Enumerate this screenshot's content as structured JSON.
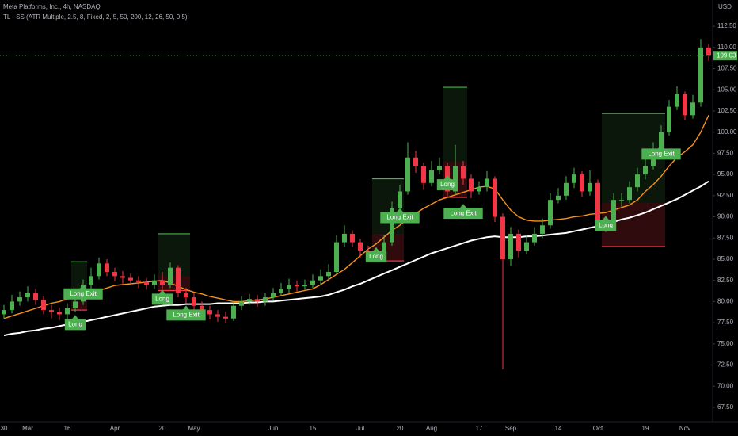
{
  "chart_data": {
    "type": "candlestick",
    "title": "Meta Platforms, Inc., 4h, NASDAQ",
    "subtitle": "TL - SS (ATR Multiple, 2.5, 8, Fixed, 2, 5, 50, 200, 12, 26, 50, 0.5)",
    "currency": "USD",
    "last_price": 109.03,
    "up_color": "#4caf50",
    "down_color": "#f23645",
    "categories": [
      "30",
      null,
      null,
      "Mar",
      null,
      null,
      null,
      null,
      "16",
      null,
      null,
      null,
      null,
      null,
      "Apr",
      null,
      null,
      null,
      null,
      null,
      "20",
      null,
      null,
      null,
      "May",
      null,
      null,
      null,
      null,
      null,
      null,
      null,
      null,
      null,
      "Jun",
      null,
      null,
      null,
      null,
      "15",
      null,
      null,
      null,
      null,
      null,
      "Jul",
      null,
      null,
      null,
      null,
      "20",
      null,
      null,
      null,
      "Aug",
      null,
      null,
      null,
      null,
      null,
      "17",
      null,
      null,
      null,
      "Sep",
      null,
      null,
      null,
      null,
      null,
      "14",
      null,
      null,
      null,
      null,
      "Oct",
      null,
      null,
      null,
      null,
      null,
      "19",
      null,
      null,
      null,
      null,
      "Nov",
      null,
      null,
      null
    ],
    "ohlc": {
      "open": [
        78.5,
        79.0,
        80.0,
        80.5,
        81.0,
        80.2,
        79.0,
        78.8,
        78.5,
        79.2,
        80.0,
        82.0,
        83.0,
        84.5,
        83.5,
        83.0,
        82.8,
        82.5,
        82.3,
        82.0,
        82.5,
        82.0,
        84.0,
        81.0,
        80.5,
        79.5,
        79.0,
        78.5,
        78.2,
        78.0,
        79.5,
        80.0,
        80.3,
        80.0,
        80.5,
        81.0,
        81.5,
        82.0,
        81.8,
        82.0,
        82.5,
        83.0,
        83.5,
        87.0,
        88.0,
        87.0,
        86.0,
        85.5,
        85.5,
        87.0,
        91.0,
        93.0,
        97.0,
        96.0,
        94.0,
        95.5,
        96.0,
        93.0,
        96.0,
        94.5,
        93.0,
        93.5,
        94.5,
        90.0,
        85.0,
        88.0,
        86.0,
        87.0,
        88.0,
        89.0,
        92.0,
        92.5,
        94.0,
        95.0,
        93.0,
        94.0,
        89.0,
        89.0,
        92.0,
        92.0,
        93.5,
        95.0,
        96.0,
        98.0,
        100.0,
        103.0,
        104.5,
        102.0,
        103.5,
        110.0
      ],
      "high": [
        79.6,
        80.8,
        81.2,
        81.8,
        81.5,
        80.6,
        79.6,
        79.3,
        79.8,
        80.6,
        82.6,
        84.0,
        85.2,
        85.0,
        84.0,
        83.6,
        83.3,
        83.0,
        82.8,
        83.2,
        83.5,
        84.6,
        84.3,
        81.6,
        81.0,
        80.0,
        79.5,
        79.0,
        78.8,
        80.0,
        80.6,
        80.9,
        80.8,
        81.0,
        81.6,
        82.2,
        82.7,
        82.5,
        82.6,
        83.2,
        83.8,
        84.4,
        87.8,
        89.0,
        88.4,
        87.4,
        86.6,
        86.4,
        87.8,
        91.8,
        93.8,
        98.8,
        97.8,
        96.4,
        96.6,
        97.0,
        96.4,
        98.5,
        96.6,
        95.0,
        94.2,
        95.4,
        94.8,
        90.4,
        88.8,
        88.5,
        87.8,
        88.8,
        89.8,
        92.8,
        93.4,
        94.8,
        95.8,
        95.4,
        95.5,
        94.4,
        89.8,
        92.8,
        92.8,
        94.2,
        95.8,
        96.8,
        98.8,
        100.8,
        103.8,
        105.4,
        104.8,
        104.4,
        111.0,
        110.4
      ],
      "low": [
        78.0,
        78.6,
        79.5,
        80.0,
        79.6,
        78.5,
        78.0,
        77.8,
        77.9,
        78.8,
        79.6,
        81.5,
        82.6,
        83.0,
        82.4,
        82.0,
        81.9,
        81.6,
        81.4,
        81.5,
        81.4,
        81.6,
        80.5,
        79.8,
        78.9,
        78.4,
        77.9,
        77.6,
        77.4,
        77.7,
        79.0,
        79.6,
        79.4,
        79.5,
        80.1,
        80.6,
        81.0,
        81.2,
        81.3,
        81.6,
        82.0,
        82.6,
        83.2,
        86.5,
        86.4,
        85.2,
        84.8,
        84.8,
        85.0,
        86.6,
        90.4,
        92.6,
        95.2,
        93.2,
        93.6,
        95.0,
        92.4,
        92.6,
        93.8,
        92.2,
        92.6,
        93.0,
        89.4,
        72.0,
        84.2,
        85.2,
        85.6,
        86.6,
        87.5,
        88.6,
        91.6,
        92.0,
        93.4,
        92.4,
        92.5,
        88.4,
        88.2,
        88.6,
        91.2,
        91.6,
        93.0,
        94.4,
        95.6,
        97.6,
        99.6,
        102.6,
        101.4,
        101.6,
        103.0,
        108.4
      ],
      "close": [
        79.0,
        80.0,
        80.5,
        81.0,
        80.2,
        79.0,
        78.8,
        78.5,
        79.2,
        80.0,
        82.0,
        83.0,
        84.5,
        83.5,
        83.0,
        82.8,
        82.5,
        82.3,
        82.0,
        82.5,
        82.0,
        84.0,
        81.0,
        80.5,
        79.5,
        79.0,
        78.5,
        78.2,
        78.0,
        79.5,
        80.0,
        80.3,
        80.0,
        80.5,
        81.0,
        81.5,
        82.0,
        81.8,
        82.0,
        82.5,
        83.0,
        83.5,
        87.0,
        88.0,
        87.0,
        86.0,
        85.5,
        85.5,
        87.0,
        91.0,
        93.0,
        97.0,
        96.0,
        94.0,
        95.5,
        96.0,
        93.0,
        96.0,
        94.5,
        93.0,
        93.5,
        94.5,
        90.0,
        85.0,
        88.0,
        86.0,
        87.0,
        88.0,
        89.0,
        92.0,
        92.5,
        94.0,
        95.0,
        93.0,
        94.0,
        89.0,
        89.0,
        92.0,
        92.0,
        93.5,
        95.0,
        96.0,
        98.0,
        100.0,
        103.0,
        104.5,
        102.0,
        103.5,
        110.0,
        109.03
      ]
    },
    "moving_averages": [
      {
        "color": "#f7931a",
        "values": [
          78.0,
          78.3,
          78.6,
          78.9,
          79.2,
          79.5,
          79.8,
          80.0,
          80.3,
          80.5,
          80.8,
          81.0,
          81.3,
          81.6,
          81.9,
          82.0,
          82.1,
          82.2,
          82.3,
          82.4,
          82.5,
          82.2,
          81.8,
          81.4,
          81.1,
          80.9,
          80.6,
          80.4,
          80.2,
          80.0,
          80.0,
          80.1,
          80.2,
          80.3,
          80.5,
          80.7,
          80.9,
          81.1,
          81.3,
          81.5,
          82.0,
          82.6,
          83.2,
          83.8,
          84.6,
          85.4,
          86.2,
          86.8,
          87.6,
          88.4,
          89.0,
          89.8,
          90.4,
          91.0,
          91.5,
          92.0,
          92.3,
          92.6,
          92.9,
          93.2,
          93.5,
          93.6,
          93.3,
          92.0,
          90.8,
          90.0,
          89.6,
          89.5,
          89.5,
          89.6,
          89.7,
          89.8,
          90.0,
          90.1,
          90.3,
          90.4,
          90.5,
          90.8,
          91.1,
          91.4,
          92.0,
          93.0,
          93.8,
          94.8,
          96.0,
          97.0,
          97.7,
          98.5,
          100.0,
          102.0
        ]
      },
      {
        "color": "#ffffff",
        "values": [
          76.0,
          76.2,
          76.3,
          76.5,
          76.6,
          76.8,
          76.9,
          77.1,
          77.3,
          77.4,
          77.6,
          77.8,
          78.0,
          78.2,
          78.4,
          78.6,
          78.8,
          79.0,
          79.2,
          79.4,
          79.5,
          79.6,
          79.6,
          79.7,
          79.7,
          79.7,
          79.7,
          79.8,
          79.8,
          79.8,
          79.8,
          79.9,
          79.9,
          80.0,
          80.0,
          80.1,
          80.2,
          80.3,
          80.4,
          80.5,
          80.6,
          80.8,
          81.1,
          81.4,
          81.8,
          82.1,
          82.5,
          82.9,
          83.3,
          83.7,
          84.1,
          84.5,
          84.9,
          85.3,
          85.7,
          86.0,
          86.3,
          86.6,
          86.9,
          87.2,
          87.4,
          87.6,
          87.7,
          87.6,
          87.6,
          87.6,
          87.7,
          87.7,
          87.8,
          87.9,
          88.0,
          88.1,
          88.3,
          88.5,
          88.7,
          88.9,
          89.2,
          89.4,
          89.7,
          89.9,
          90.2,
          90.5,
          90.9,
          91.3,
          91.7,
          92.1,
          92.6,
          93.1,
          93.6,
          94.2
        ]
      }
    ],
    "trades": [
      {
        "start": 9,
        "end": 10,
        "entry": 80.0,
        "target": 84.7,
        "stop": 79.0,
        "exit": 82.5,
        "entry_label": "Long",
        "exit_label": "Long Exit"
      },
      {
        "start": 20,
        "end": 23,
        "entry": 83.0,
        "target": 88.0,
        "stop": 81.3,
        "exit": 80.0,
        "entry_label": "Long",
        "exit_label": "Long Exit"
      },
      {
        "start": 47,
        "end": 50,
        "entry": 88.0,
        "target": 94.5,
        "stop": 84.8,
        "exit": 91.5,
        "entry_label": "Long",
        "exit_label": "Long Exit"
      },
      {
        "start": 56,
        "end": 58,
        "entry": 96.5,
        "target": 105.3,
        "stop": 92.3,
        "exit": 92.0,
        "entry_label": "Long",
        "exit_label": "Long Exit"
      },
      {
        "start": 76,
        "end": 83,
        "entry": 91.7,
        "target": 102.2,
        "stop": 86.5,
        "exit": 99.0,
        "entry_label": "Long",
        "exit_label": "Long Exit"
      }
    ],
    "ylim": [
      66.0,
      115.6
    ],
    "yticks": [
      {
        "value": 67.5,
        "label": "67.50"
      },
      {
        "value": 70,
        "label": "70.00"
      },
      {
        "value": 72.5,
        "label": "72.50"
      },
      {
        "value": 75,
        "label": "75.00"
      },
      {
        "value": 77.5,
        "label": "77.50"
      },
      {
        "value": 80,
        "label": "80.00"
      },
      {
        "value": 82.5,
        "label": "82.50"
      },
      {
        "value": 85,
        "label": "85.00"
      },
      {
        "value": 87.5,
        "label": "87.50"
      },
      {
        "value": 90,
        "label": "90.00"
      },
      {
        "value": 92.5,
        "label": "92.50"
      },
      {
        "value": 95,
        "label": "95.00"
      },
      {
        "value": 97.5,
        "label": "97.50"
      },
      {
        "value": 100,
        "label": "100.00"
      },
      {
        "value": 102.5,
        "label": "102.50"
      },
      {
        "value": 105,
        "label": "105.00"
      },
      {
        "value": 107.5,
        "label": "107.50"
      },
      {
        "value": 110,
        "label": "110.00"
      },
      {
        "value": 112.5,
        "label": "112.50"
      }
    ]
  }
}
